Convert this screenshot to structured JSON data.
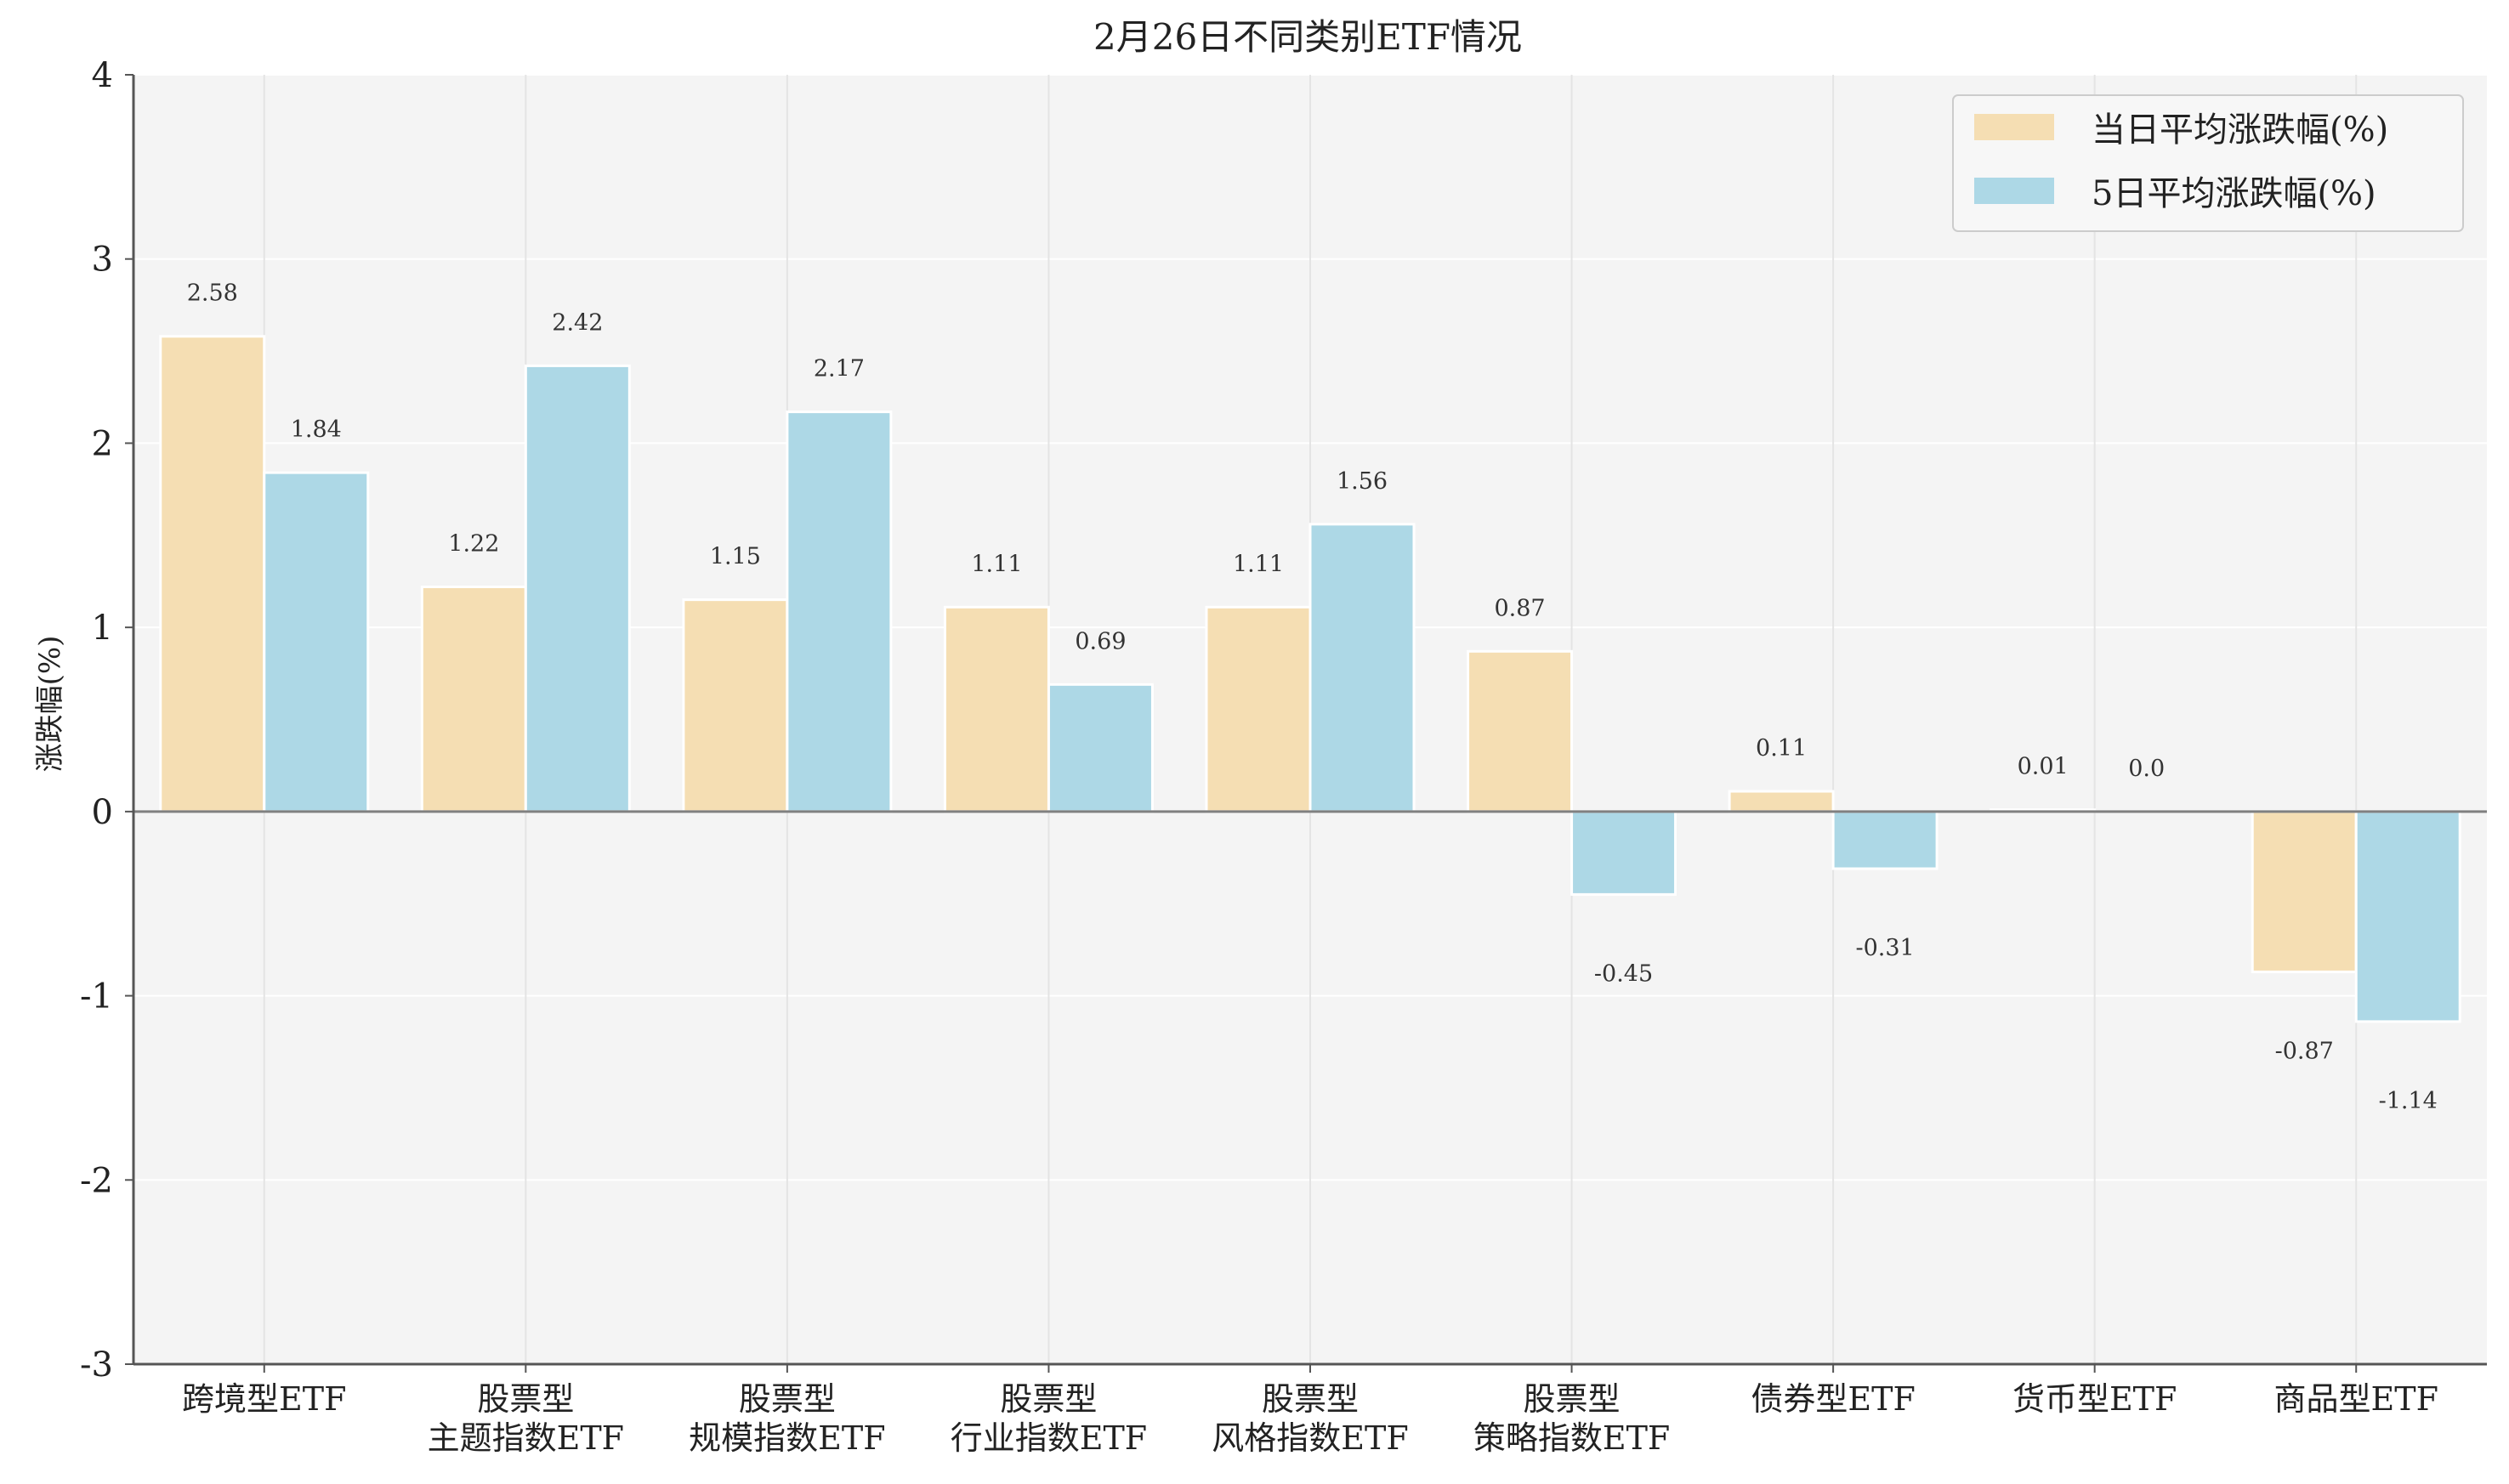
{
  "chart_data": {
    "type": "bar",
    "title": "2月26日不同类别ETF情况",
    "ylabel": "涨跌幅(%)",
    "xlabel": "",
    "ylim": [
      -3,
      4
    ],
    "yticks": [
      -3,
      -2,
      -1,
      0,
      1,
      2,
      3,
      4
    ],
    "grid": true,
    "legend_position": "top-right",
    "categories": [
      [
        "跨境型ETF"
      ],
      [
        "股票型",
        "主题指数ETF"
      ],
      [
        "股票型",
        "规模指数ETF"
      ],
      [
        "股票型",
        "行业指数ETF"
      ],
      [
        "股票型",
        "风格指数ETF"
      ],
      [
        "股票型",
        "策略指数ETF"
      ],
      [
        "债券型ETF"
      ],
      [
        "货币型ETF"
      ],
      [
        "商品型ETF"
      ]
    ],
    "series": [
      {
        "name": "当日平均涨跌幅(%)",
        "color": "#F5DEB3",
        "values": [
          2.58,
          1.22,
          1.15,
          1.11,
          1.11,
          0.87,
          0.11,
          0.01,
          -0.87
        ],
        "labels": [
          "2.58",
          "1.22",
          "1.15",
          "1.11",
          "1.11",
          "0.87",
          "0.11",
          "0.01",
          "-0.87"
        ]
      },
      {
        "name": "5日平均涨跌幅(%)",
        "color": "#ADD8E6",
        "values": [
          1.84,
          2.42,
          2.17,
          0.69,
          1.56,
          -0.45,
          -0.31,
          0.0,
          -1.14
        ],
        "labels": [
          "1.84",
          "2.42",
          "2.17",
          "0.69",
          "1.56",
          "-0.45",
          "-0.31",
          "0.0",
          "-1.14"
        ]
      }
    ],
    "colors": {
      "plot_background": "#F4F4F4",
      "grid": "#FFFFFF",
      "vgrid": "#E4E4E4",
      "axis": "#555555",
      "zero_line": "#808080"
    }
  }
}
